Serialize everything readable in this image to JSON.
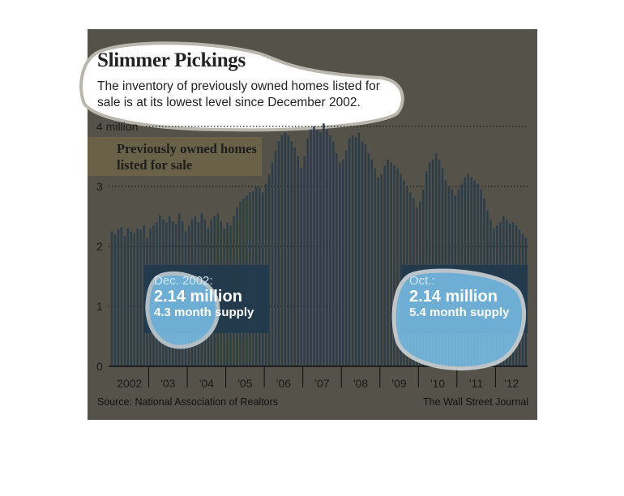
{
  "title": "Slimmer Pickings",
  "subtitle": "The inventory of previously owned homes listed for sale is at its lowest level since December 2002.",
  "legend_label": "Previously owned homes listed for sale",
  "source": "Source: National Association of Realtors",
  "credit": "The Wall Street Journal",
  "callouts": [
    {
      "label": "Dec. 2002:",
      "value": "2.14 million",
      "sub": "4.3 month supply"
    },
    {
      "label": "Oct.:",
      "value": "2.14 million",
      "sub": "5.4 month supply"
    }
  ],
  "colors": {
    "panel": "#55524a",
    "bar": "#2c3d4a",
    "callout_box": "#223a4d",
    "highlight": "#7cc3ec",
    "text": "#222222"
  },
  "chart_data": {
    "type": "bar",
    "title": "Slimmer Pickings",
    "series_name": "Previously owned homes listed for sale",
    "unit": "million",
    "ylim": [
      0,
      4
    ],
    "yticks": [
      0,
      1,
      2,
      3,
      4
    ],
    "ytick_labels": [
      "0",
      "1",
      "2",
      "3",
      "4 million"
    ],
    "xticks": [
      "2002",
      "'03",
      "'04",
      "'05",
      "'06",
      "'07",
      "'08",
      "'09",
      "'10",
      "'11",
      "'12"
    ],
    "grid": true,
    "start": "2002-01",
    "end": "2012-10",
    "values": [
      2.25,
      2.2,
      2.28,
      2.32,
      2.18,
      2.3,
      2.25,
      2.22,
      2.3,
      2.28,
      2.35,
      2.14,
      2.3,
      2.35,
      2.4,
      2.52,
      2.45,
      2.4,
      2.5,
      2.42,
      2.38,
      2.55,
      2.42,
      2.25,
      2.35,
      2.45,
      2.5,
      2.4,
      2.55,
      2.45,
      2.3,
      2.45,
      2.5,
      2.55,
      2.42,
      2.3,
      2.4,
      2.35,
      2.5,
      2.65,
      2.75,
      2.8,
      2.85,
      2.9,
      2.92,
      3.0,
      2.98,
      2.9,
      3.05,
      3.2,
      3.4,
      3.6,
      3.75,
      3.85,
      3.9,
      3.85,
      3.75,
      3.65,
      3.5,
      3.3,
      3.5,
      3.8,
      3.95,
      4.0,
      3.95,
      3.9,
      4.05,
      3.95,
      3.85,
      3.75,
      3.55,
      3.4,
      3.45,
      3.6,
      3.8,
      3.85,
      3.82,
      3.9,
      3.75,
      3.7,
      3.55,
      3.45,
      3.3,
      3.15,
      3.2,
      3.35,
      3.45,
      3.4,
      3.35,
      3.3,
      3.2,
      3.1,
      3.0,
      2.9,
      2.8,
      2.65,
      2.75,
      2.95,
      3.25,
      3.4,
      3.45,
      3.55,
      3.45,
      3.3,
      3.1,
      3.0,
      2.95,
      2.85,
      2.95,
      3.05,
      3.15,
      3.2,
      3.15,
      3.1,
      3.05,
      2.95,
      2.8,
      2.6,
      2.45,
      2.3,
      2.35,
      2.4,
      2.5,
      2.45,
      2.38,
      2.4,
      2.35,
      2.28,
      2.2,
      2.14
    ]
  }
}
